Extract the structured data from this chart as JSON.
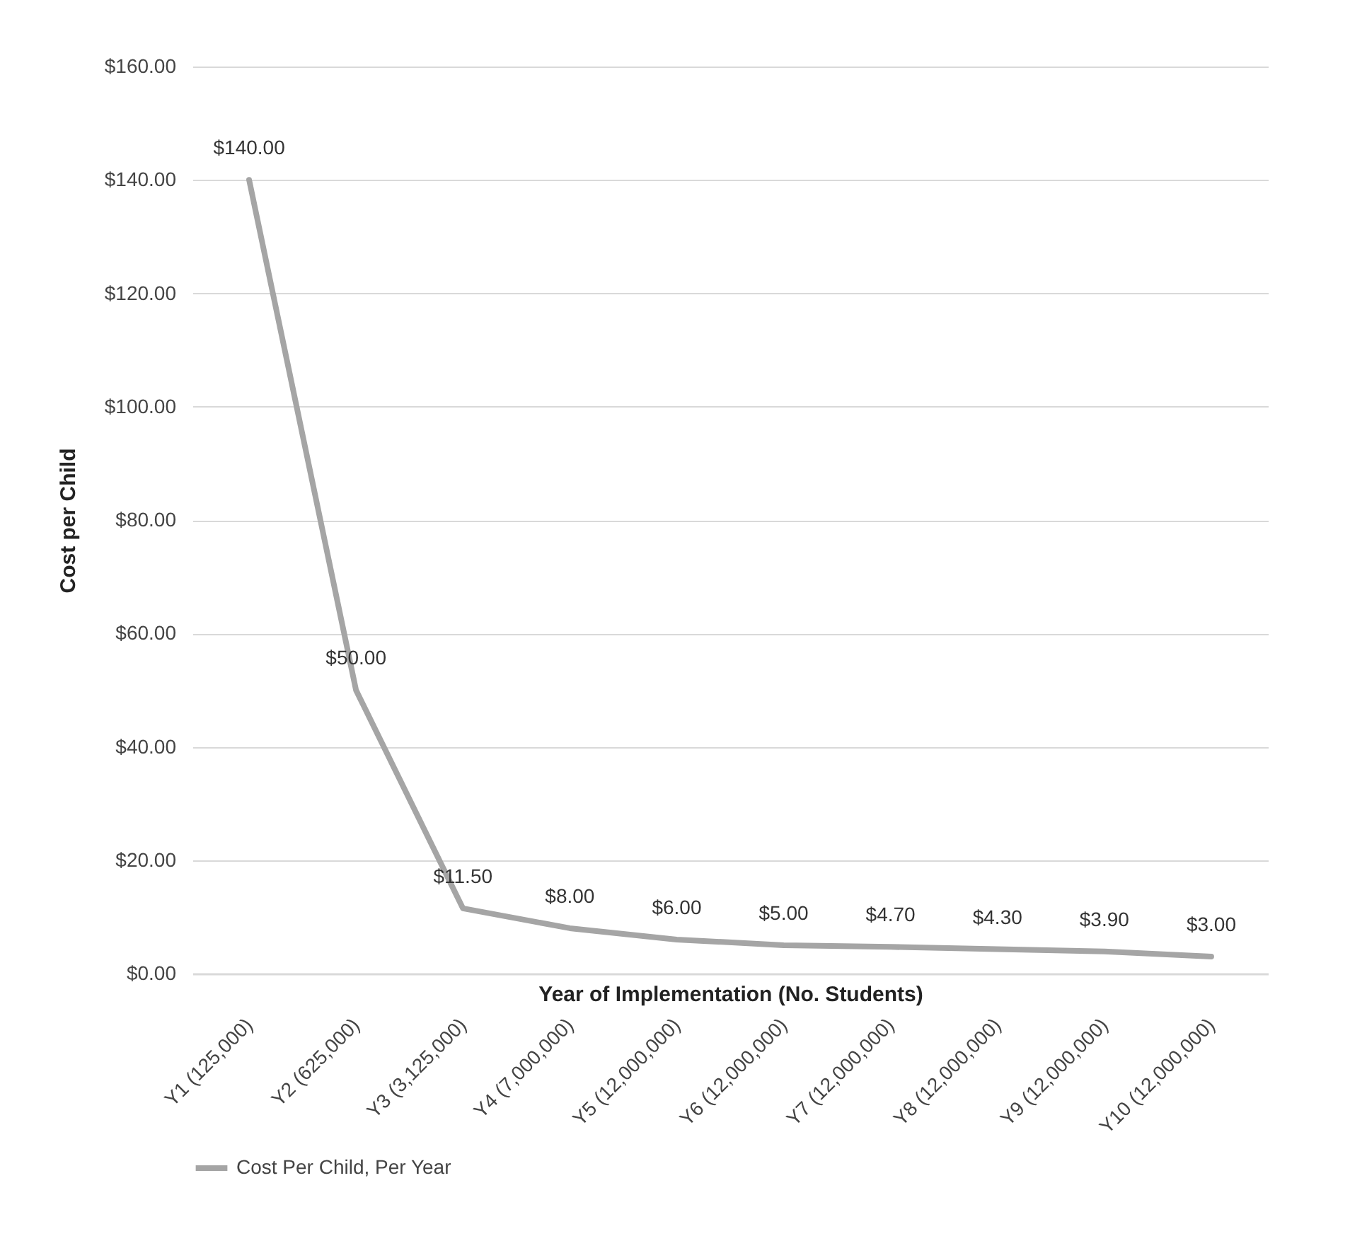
{
  "chart_data": {
    "type": "line",
    "xlabel": "Year of Implementation  (No. Students)",
    "ylabel": "Cost per Child",
    "categories": [
      "Y1 (125,000)",
      "Y2 (625,000)",
      "Y3 (3,125,000)",
      "Y4 (7,000,000)",
      "Y5 (12,000,000)",
      "Y6 (12,000,000)",
      "Y7 (12,000,000)",
      "Y8 (12,000,000)",
      "Y9 (12,000,000)",
      "Y10 (12,000,000)"
    ],
    "series": [
      {
        "name": "Cost Per Child, Per Year",
        "color": "#a5a5a5",
        "values": [
          140,
          50,
          11.5,
          8,
          6,
          5,
          4.7,
          4.3,
          3.9,
          3
        ],
        "value_labels": [
          "$140.00",
          "$50.00",
          "$11.50",
          "$8.00",
          "$6.00",
          "$5.00",
          "$4.70",
          "$4.30",
          "$3.90",
          "$3.00"
        ]
      }
    ],
    "ylim": [
      0,
      160
    ],
    "yticks": [
      {
        "value": 0,
        "label": "$0.00"
      },
      {
        "value": 20,
        "label": "$20.00"
      },
      {
        "value": 40,
        "label": "$40.00"
      },
      {
        "value": 60,
        "label": "$60.00"
      },
      {
        "value": 80,
        "label": "$80.00"
      },
      {
        "value": 100,
        "label": "$100.00"
      },
      {
        "value": 120,
        "label": "$120.00"
      },
      {
        "value": 140,
        "label": "$140.00"
      },
      {
        "value": 160,
        "label": "$160.00"
      }
    ],
    "grid": "y",
    "legend": "bottom",
    "marker": "none",
    "line_style": "solid"
  }
}
